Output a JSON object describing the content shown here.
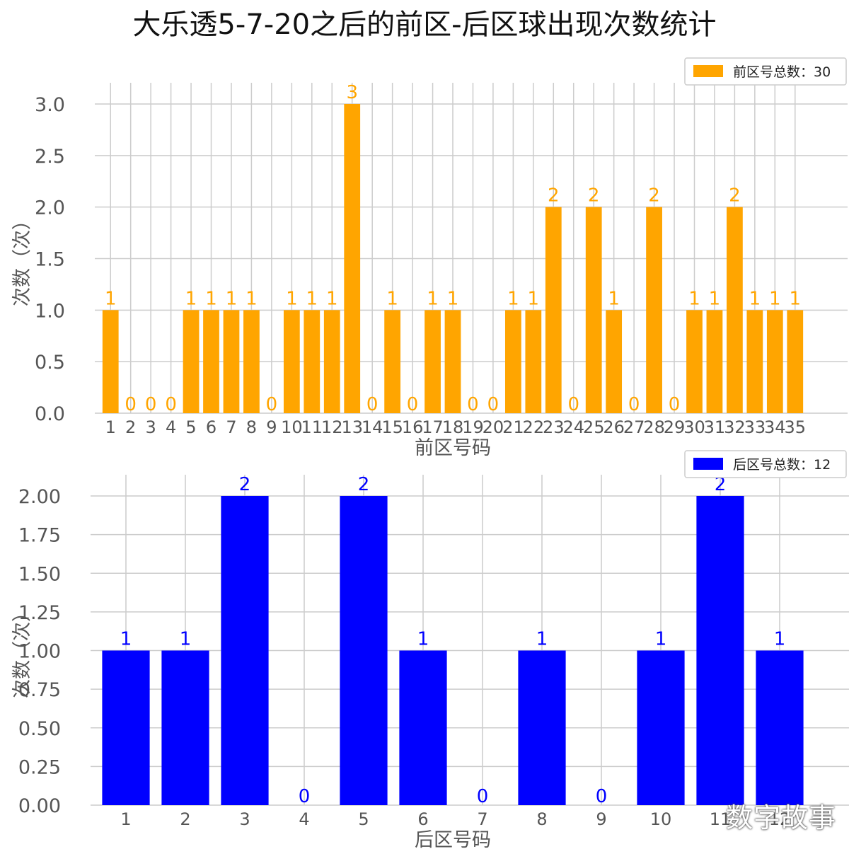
{
  "title": "大乐透5-7-20之后的前区-后区球出现次数统计",
  "watermark": "数字故事",
  "colors": {
    "front": "#FFA500",
    "back": "#0000FF",
    "grid": "#cccccc",
    "text": "#555555"
  },
  "chart_data": [
    {
      "type": "bar",
      "id": "front",
      "categories": [
        "1",
        "2",
        "3",
        "4",
        "5",
        "6",
        "7",
        "8",
        "9",
        "10",
        "11",
        "12",
        "13",
        "14",
        "15",
        "16",
        "17",
        "18",
        "19",
        "20",
        "21",
        "22",
        "23",
        "24",
        "25",
        "26",
        "27",
        "28",
        "29",
        "30",
        "31",
        "32",
        "33",
        "34",
        "35"
      ],
      "values": [
        1,
        0,
        0,
        0,
        1,
        1,
        1,
        1,
        0,
        1,
        1,
        1,
        3,
        0,
        1,
        0,
        1,
        1,
        0,
        0,
        1,
        1,
        2,
        0,
        2,
        1,
        0,
        2,
        0,
        1,
        1,
        2,
        1,
        1,
        1
      ],
      "xlabel": "前区号码",
      "ylabel": "次数（次）",
      "ylim": [
        0,
        3.0
      ],
      "yticks": [
        "0.0",
        "0.5",
        "1.0",
        "1.5",
        "2.0",
        "2.5",
        "3.0"
      ],
      "legend": "前区号总数：30",
      "legend_position": "top-right",
      "grid": true
    },
    {
      "type": "bar",
      "id": "back",
      "categories": [
        "1",
        "2",
        "3",
        "4",
        "5",
        "6",
        "7",
        "8",
        "9",
        "10",
        "11",
        "12"
      ],
      "values": [
        1,
        1,
        2,
        0,
        2,
        1,
        0,
        1,
        0,
        1,
        2,
        1
      ],
      "xlabel": "后区号码",
      "ylabel": "次数（次）",
      "ylim": [
        0,
        2.0
      ],
      "yticks": [
        "0.00",
        "0.25",
        "0.50",
        "0.75",
        "1.00",
        "1.25",
        "1.50",
        "1.75",
        "2.00"
      ],
      "legend": "后区号总数：12",
      "legend_position": "top-right",
      "grid": true
    }
  ]
}
